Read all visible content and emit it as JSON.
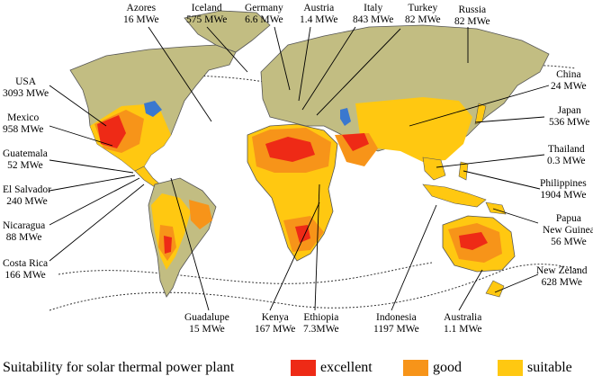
{
  "colors": {
    "ocean": "#ffffff",
    "land_unsuitable": "#c2bd82",
    "excellent": "#ee2a16",
    "good": "#f79419",
    "suitable": "#ffc811",
    "lakes": "#3a78cf",
    "outline": "#444444"
  },
  "labels": [
    {
      "id": "azores",
      "name": "Azores",
      "value": "16 MWe"
    },
    {
      "id": "iceland",
      "name": "Iceland",
      "value": "575 MWe"
    },
    {
      "id": "germany",
      "name": "Germany",
      "value": "6.6 MWe"
    },
    {
      "id": "austria",
      "name": "Austria",
      "value": "1.4 MWe"
    },
    {
      "id": "italy",
      "name": "Italy",
      "value": "843 MWe"
    },
    {
      "id": "turkey",
      "name": "Turkey",
      "value": "82 MWe"
    },
    {
      "id": "russia",
      "name": "Russia",
      "value": "82 MWe"
    },
    {
      "id": "usa",
      "name": "USA",
      "value": "3093 MWe"
    },
    {
      "id": "mexico",
      "name": "Mexico",
      "value": "958 MWe"
    },
    {
      "id": "guatemala",
      "name": "Guatemala",
      "value": "52 MWe"
    },
    {
      "id": "elsalvador",
      "name": "El Salvador",
      "value": "240 MWe"
    },
    {
      "id": "nicaragua",
      "name": "Nicaragua",
      "value": "88 MWe"
    },
    {
      "id": "costarica",
      "name": "Costa Rica",
      "value": "166 MWe"
    },
    {
      "id": "china",
      "name": "China",
      "value": "24 MWe"
    },
    {
      "id": "japan",
      "name": "Japan",
      "value": "536 MWe"
    },
    {
      "id": "thailand",
      "name": "Thailand",
      "value": "0.3 MWe"
    },
    {
      "id": "philippines",
      "name": "Philippines",
      "value": "1904 MWe"
    },
    {
      "id": "papua",
      "name": "Papua",
      "name2": "New Guinea",
      "value": "56 MWe"
    },
    {
      "id": "newzealand",
      "name": "New Zeland",
      "value": "628 MWe"
    },
    {
      "id": "guadalupe",
      "name": "Guadalupe",
      "value": "15 MWe"
    },
    {
      "id": "kenya",
      "name": "Kenya",
      "value": "167 MWe"
    },
    {
      "id": "ethiopia",
      "name": "Ethiopia",
      "value": "7.3MWe"
    },
    {
      "id": "indonesia",
      "name": "Indonesia",
      "value": "1197 MWe"
    },
    {
      "id": "australia",
      "name": "Australia",
      "value": "1.1 MWe"
    }
  ],
  "legend": {
    "title": "Suitability for solar thermal power plant",
    "items": [
      {
        "label": "excellent",
        "color": "#ee2a16"
      },
      {
        "label": "good",
        "color": "#f79419"
      },
      {
        "label": "suitable",
        "color": "#ffc811"
      }
    ]
  }
}
